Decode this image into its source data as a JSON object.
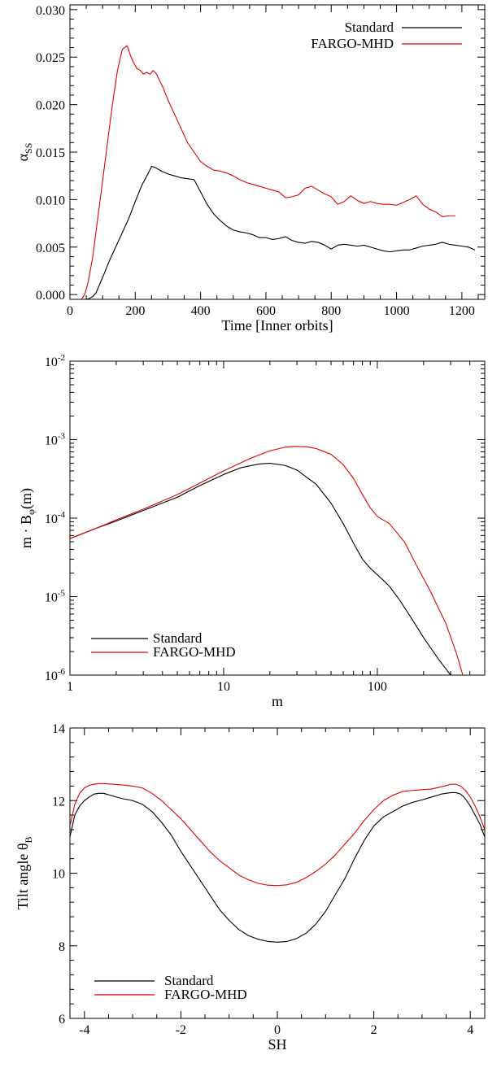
{
  "colors": {
    "standard": "#000000",
    "fargo": "#e00000"
  },
  "chart_data": [
    {
      "type": "line",
      "xlabel": "Time [Inner orbits]",
      "ylabel_main": "α",
      "ylabel_sub": "SS",
      "xlim": [
        0,
        1270
      ],
      "ylim": [
        -0.0005,
        0.0305
      ],
      "xticks": [
        0,
        200,
        400,
        600,
        800,
        1000,
        1200
      ],
      "xtick_labels": [
        "0",
        "200",
        "400",
        "600",
        "800",
        "1000",
        "1200"
      ],
      "yticks": [
        0.0,
        0.005,
        0.01,
        0.015,
        0.02,
        0.025,
        0.03
      ],
      "ytick_labels": [
        "0.000",
        "0.005",
        "0.010",
        "0.015",
        "0.020",
        "0.025",
        "0.030"
      ],
      "legend_position": "top-right",
      "series": [
        {
          "name": "Standard",
          "color_key": "standard",
          "x": [
            50,
            60,
            70,
            80,
            90,
            100,
            120,
            140,
            160,
            180,
            200,
            220,
            240,
            250,
            260,
            280,
            300,
            320,
            340,
            360,
            380,
            400,
            420,
            440,
            460,
            480,
            500,
            520,
            540,
            560,
            580,
            600,
            620,
            640,
            660,
            680,
            700,
            720,
            740,
            760,
            780,
            800,
            820,
            840,
            860,
            880,
            900,
            920,
            940,
            960,
            980,
            1000,
            1020,
            1040,
            1060,
            1080,
            1100,
            1120,
            1140,
            1160,
            1180,
            1200,
            1220,
            1240
          ],
          "y": [
            -0.0005,
            -0.0004,
            -0.0002,
            0.0002,
            0.001,
            0.0018,
            0.0035,
            0.005,
            0.0065,
            0.008,
            0.0098,
            0.0115,
            0.0128,
            0.0135,
            0.0134,
            0.013,
            0.0127,
            0.0125,
            0.0123,
            0.0122,
            0.0121,
            0.0108,
            0.0095,
            0.0085,
            0.0078,
            0.0072,
            0.0068,
            0.0066,
            0.0065,
            0.0063,
            0.006,
            0.006,
            0.0058,
            0.0059,
            0.0061,
            0.0057,
            0.0055,
            0.0054,
            0.0056,
            0.0055,
            0.0052,
            0.0048,
            0.0052,
            0.0053,
            0.0052,
            0.0051,
            0.0052,
            0.005,
            0.0048,
            0.0046,
            0.0045,
            0.0046,
            0.0047,
            0.0047,
            0.0049,
            0.0051,
            0.0052,
            0.0053,
            0.0055,
            0.0053,
            0.0052,
            0.0051,
            0.005,
            0.0047
          ]
        },
        {
          "name": "FARGO-MHD",
          "color_key": "fargo",
          "x": [
            35,
            45,
            55,
            70,
            85,
            100,
            115,
            130,
            145,
            160,
            175,
            185,
            195,
            205,
            215,
            225,
            235,
            245,
            255,
            265,
            275,
            285,
            300,
            320,
            340,
            360,
            380,
            400,
            420,
            440,
            460,
            480,
            500,
            520,
            540,
            560,
            580,
            600,
            620,
            640,
            660,
            680,
            700,
            720,
            740,
            760,
            780,
            800,
            820,
            840,
            860,
            880,
            900,
            920,
            940,
            960,
            980,
            1000,
            1020,
            1040,
            1060,
            1080,
            1100,
            1120,
            1140,
            1160,
            1180
          ],
          "y": [
            -0.0005,
            0.0,
            0.0012,
            0.004,
            0.008,
            0.012,
            0.016,
            0.02,
            0.0235,
            0.0258,
            0.0262,
            0.0252,
            0.0244,
            0.0238,
            0.0236,
            0.0232,
            0.0234,
            0.0232,
            0.0236,
            0.0232,
            0.0225,
            0.0218,
            0.0205,
            0.019,
            0.0175,
            0.016,
            0.015,
            0.014,
            0.0135,
            0.0131,
            0.013,
            0.0128,
            0.0125,
            0.0121,
            0.0118,
            0.0116,
            0.0114,
            0.0112,
            0.011,
            0.0108,
            0.0102,
            0.0103,
            0.0105,
            0.0112,
            0.0114,
            0.011,
            0.0106,
            0.0103,
            0.0095,
            0.0098,
            0.0104,
            0.0099,
            0.0096,
            0.0098,
            0.0096,
            0.0095,
            0.0095,
            0.0094,
            0.0097,
            0.01,
            0.0104,
            0.0095,
            0.009,
            0.0087,
            0.0082,
            0.0083,
            0.0083
          ]
        }
      ]
    },
    {
      "type": "line",
      "xscale": "log",
      "yscale": "log",
      "xlabel": "m",
      "ylabel_parts": {
        "main": "m · B",
        "sub": "φ",
        "tail": "(m)"
      },
      "xlim": [
        1,
        500
      ],
      "ylim": [
        1e-06,
        0.01
      ],
      "xticks": [
        1,
        10,
        100
      ],
      "xtick_labels": [
        "1",
        "10",
        "100"
      ],
      "yticks": [
        1e-06,
        1e-05,
        0.0001,
        0.001,
        0.01
      ],
      "ytick_base": "10",
      "ytick_exponents": [
        "-6",
        "-5",
        "-4",
        "-3",
        "-2"
      ],
      "legend_position": "bottom-left",
      "series": [
        {
          "name": "Standard",
          "color_key": "standard",
          "x": [
            1,
            1.5,
            2,
            3,
            5,
            7,
            10,
            13,
            17,
            20,
            25,
            30,
            40,
            50,
            60,
            70,
            80,
            90,
            100,
            110,
            120,
            140,
            170,
            200,
            250,
            300
          ],
          "y": [
            5.5e-05,
            7.5e-05,
            9.2e-05,
            0.000125,
            0.000185,
            0.00026,
            0.00036,
            0.00044,
            0.00049,
            0.0005,
            0.00047,
            0.00041,
            0.00027,
            0.000155,
            8.5e-05,
            4.8e-05,
            3e-05,
            2.3e-05,
            1.9e-05,
            1.6e-05,
            1.35e-05,
            9e-06,
            5e-06,
            3e-06,
            1.6e-06,
            1e-06
          ]
        },
        {
          "name": "FARGO-MHD",
          "color_key": "fargo",
          "x": [
            1,
            1.5,
            2,
            3,
            5,
            7,
            10,
            15,
            20,
            25,
            30,
            35,
            40,
            50,
            60,
            70,
            80,
            90,
            100,
            120,
            150,
            180,
            220,
            280,
            330,
            360
          ],
          "y": [
            5.5e-05,
            7.5e-05,
            9.5e-05,
            0.00013,
            0.0002,
            0.00028,
            0.0004,
            0.00058,
            0.00072,
            0.0008,
            0.00082,
            0.00081,
            0.00077,
            0.00065,
            0.00048,
            0.00032,
            0.0002,
            0.000135,
            0.000105,
            8.5e-05,
            5e-05,
            2.5e-05,
            1.2e-05,
            4.5e-06,
            1.8e-06,
            1e-06
          ]
        }
      ]
    },
    {
      "type": "line",
      "xlabel": "SH",
      "ylabel_main": "Tilt angle θ",
      "ylabel_sub": "B",
      "xlim": [
        -4.3,
        4.3
      ],
      "ylim": [
        6,
        14
      ],
      "xticks": [
        -4,
        -2,
        0,
        2,
        4
      ],
      "xtick_labels": [
        "-4",
        "-2",
        "0",
        "2",
        "4"
      ],
      "yticks": [
        6,
        8,
        10,
        12,
        14
      ],
      "ytick_labels": [
        "6",
        "8",
        "10",
        "12",
        "14"
      ],
      "legend_position": "bottom-left",
      "series": [
        {
          "name": "Standard",
          "color_key": "standard",
          "x": [
            -4.3,
            -4.2,
            -4.1,
            -4.0,
            -3.9,
            -3.8,
            -3.7,
            -3.6,
            -3.4,
            -3.2,
            -3.0,
            -2.8,
            -2.6,
            -2.4,
            -2.2,
            -2.0,
            -1.8,
            -1.6,
            -1.4,
            -1.2,
            -1.0,
            -0.8,
            -0.6,
            -0.4,
            -0.2,
            0.0,
            0.2,
            0.4,
            0.6,
            0.8,
            1.0,
            1.2,
            1.4,
            1.6,
            1.8,
            2.0,
            2.2,
            2.4,
            2.6,
            2.8,
            3.0,
            3.2,
            3.4,
            3.6,
            3.7,
            3.8,
            3.9,
            4.0,
            4.1,
            4.2,
            4.3
          ],
          "y": [
            11.0,
            11.6,
            11.85,
            12.0,
            12.1,
            12.18,
            12.2,
            12.2,
            12.12,
            12.05,
            12.0,
            11.9,
            11.7,
            11.4,
            11.05,
            10.6,
            10.2,
            9.8,
            9.4,
            9.0,
            8.7,
            8.45,
            8.28,
            8.18,
            8.12,
            8.1,
            8.12,
            8.2,
            8.35,
            8.6,
            8.95,
            9.4,
            9.85,
            10.4,
            10.9,
            11.3,
            11.55,
            11.7,
            11.85,
            11.95,
            12.02,
            12.1,
            12.18,
            12.22,
            12.22,
            12.18,
            12.05,
            11.85,
            11.6,
            11.35,
            11.0
          ]
        },
        {
          "name": "FARGO-MHD",
          "color_key": "fargo",
          "x": [
            -4.3,
            -4.2,
            -4.1,
            -4.0,
            -3.9,
            -3.8,
            -3.7,
            -3.6,
            -3.4,
            -3.2,
            -3.0,
            -2.8,
            -2.6,
            -2.4,
            -2.2,
            -2.0,
            -1.8,
            -1.6,
            -1.4,
            -1.2,
            -1.0,
            -0.8,
            -0.6,
            -0.4,
            -0.2,
            0.0,
            0.2,
            0.4,
            0.6,
            0.8,
            1.0,
            1.2,
            1.4,
            1.6,
            1.8,
            2.0,
            2.2,
            2.4,
            2.6,
            2.8,
            3.0,
            3.2,
            3.4,
            3.6,
            3.7,
            3.8,
            3.9,
            4.0,
            4.1,
            4.2,
            4.3
          ],
          "y": [
            11.3,
            11.9,
            12.2,
            12.35,
            12.42,
            12.45,
            12.47,
            12.47,
            12.45,
            12.43,
            12.4,
            12.35,
            12.2,
            12.0,
            11.75,
            11.5,
            11.2,
            10.9,
            10.6,
            10.35,
            10.15,
            9.95,
            9.82,
            9.72,
            9.67,
            9.66,
            9.68,
            9.75,
            9.88,
            10.05,
            10.25,
            10.5,
            10.8,
            11.1,
            11.45,
            11.75,
            12.0,
            12.15,
            12.25,
            12.28,
            12.3,
            12.32,
            12.38,
            12.45,
            12.45,
            12.4,
            12.28,
            12.1,
            11.85,
            11.55,
            11.2
          ]
        }
      ]
    }
  ]
}
